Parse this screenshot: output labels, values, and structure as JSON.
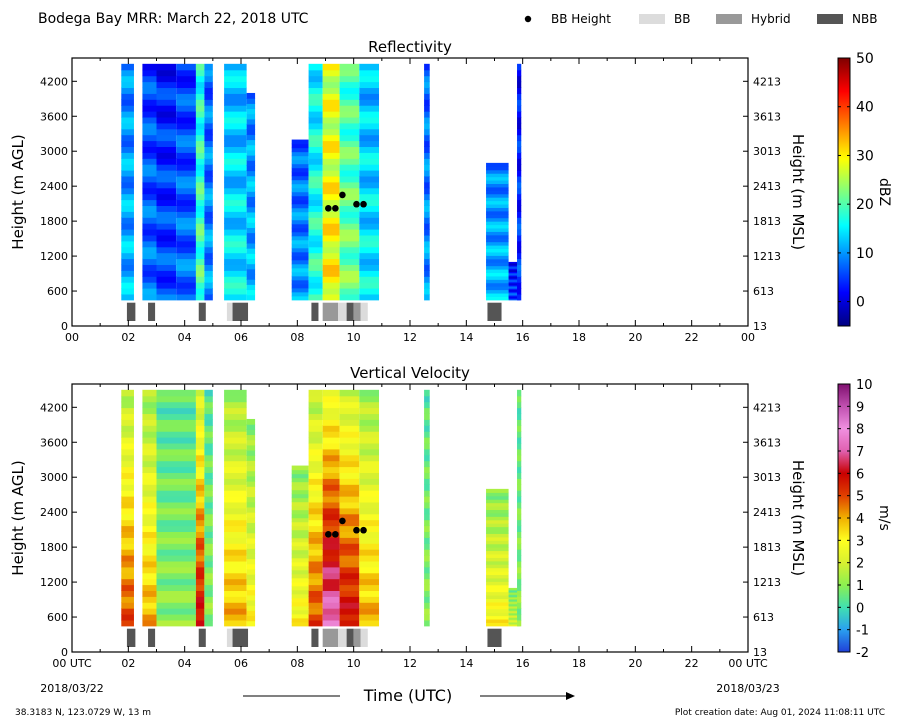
{
  "header": {
    "title": "Bodega Bay MRR:  March 22, 2018 UTC",
    "legend": [
      {
        "label": "BB Height",
        "kind": "dot",
        "color": "#000000"
      },
      {
        "label": "BB",
        "kind": "box",
        "color": "#dcdcdc"
      },
      {
        "label": "Hybrid",
        "kind": "box",
        "color": "#999999"
      },
      {
        "label": "NBB",
        "kind": "box",
        "color": "#555555"
      }
    ]
  },
  "footer": {
    "location": "38.3183 N, 123.0729 W, 13 m",
    "creation_date": "Plot creation date: Aug 01, 2024 11:08:11 UTC"
  },
  "chart_data": [
    {
      "type": "heatmap",
      "title": "Reflectivity",
      "ylabel": "Height (m AGL)",
      "ylabel_right": "Height (m MSL)",
      "xlim": [
        0,
        24
      ],
      "ylim": [
        0,
        4600
      ],
      "yticks": [
        0,
        600,
        1200,
        1800,
        2400,
        3000,
        3600,
        4200
      ],
      "yticks_right": [
        "13",
        "613",
        "1213",
        "1813",
        "2413",
        "3013",
        "3613",
        "4213"
      ],
      "xticks": [
        "00",
        "02",
        "04",
        "06",
        "08",
        "10",
        "12",
        "14",
        "16",
        "18",
        "20",
        "22",
        "00"
      ],
      "colorbar": {
        "label": "dBZ",
        "range": [
          -5,
          50
        ],
        "ticks": [
          0,
          10,
          20,
          30,
          40,
          50
        ],
        "colormap": "jet"
      },
      "bb_height_points": [
        {
          "time": 9.1,
          "height": 2020
        },
        {
          "time": 9.35,
          "height": 2020
        },
        {
          "time": 9.6,
          "height": 2250
        },
        {
          "time": 10.1,
          "height": 2090
        },
        {
          "time": 10.35,
          "height": 2090
        }
      ],
      "bb_class_segments": [
        {
          "start": 1.95,
          "end": 2.25,
          "class": "NBB"
        },
        {
          "start": 2.7,
          "end": 2.95,
          "class": "NBB"
        },
        {
          "start": 4.5,
          "end": 4.75,
          "class": "NBB"
        },
        {
          "start": 5.5,
          "end": 5.7,
          "class": "BB"
        },
        {
          "start": 5.7,
          "end": 6.25,
          "class": "NBB"
        },
        {
          "start": 8.5,
          "end": 8.75,
          "class": "NBB"
        },
        {
          "start": 8.9,
          "end": 9.45,
          "class": "Hybrid"
        },
        {
          "start": 9.45,
          "end": 9.75,
          "class": "BB"
        },
        {
          "start": 9.75,
          "end": 10.0,
          "class": "NBB"
        },
        {
          "start": 10.0,
          "end": 10.25,
          "class": "Hybrid"
        },
        {
          "start": 10.25,
          "end": 10.5,
          "class": "BB"
        },
        {
          "start": 14.75,
          "end": 15.25,
          "class": "NBB"
        }
      ],
      "precip_segments": [
        {
          "start": 1.75,
          "end": 2.2,
          "top": 4500,
          "value": 12
        },
        {
          "start": 2.5,
          "end": 3.0,
          "top": 4500,
          "value": 8
        },
        {
          "start": 3.0,
          "end": 3.7,
          "top": 4500,
          "value": 6
        },
        {
          "start": 3.7,
          "end": 4.4,
          "top": 4500,
          "value": 8
        },
        {
          "start": 4.4,
          "end": 4.7,
          "top": 4500,
          "value": 20
        },
        {
          "start": 4.7,
          "end": 5.0,
          "top": 4500,
          "value": 10
        },
        {
          "start": 5.4,
          "end": 6.2,
          "top": 4500,
          "value": 15
        },
        {
          "start": 6.2,
          "end": 6.5,
          "top": 4000,
          "value": 12
        },
        {
          "start": 7.8,
          "end": 8.4,
          "top": 3200,
          "value": 10
        },
        {
          "start": 8.4,
          "end": 8.9,
          "top": 4500,
          "value": 18
        },
        {
          "start": 8.9,
          "end": 9.5,
          "top": 4500,
          "value": 30
        },
        {
          "start": 9.5,
          "end": 10.2,
          "top": 4500,
          "value": 22
        },
        {
          "start": 10.2,
          "end": 10.9,
          "top": 4500,
          "value": 15
        },
        {
          "start": 12.5,
          "end": 12.7,
          "top": 4500,
          "value": 10
        },
        {
          "start": 14.7,
          "end": 15.5,
          "top": 2800,
          "value": 12
        },
        {
          "start": 15.5,
          "end": 15.9,
          "top": 1100,
          "value": 5
        },
        {
          "start": 15.8,
          "end": 15.95,
          "top": 4500,
          "value": 5
        }
      ]
    },
    {
      "type": "heatmap",
      "title": "Vertical Velocity",
      "ylabel": "Height (m AGL)",
      "ylabel_right": "Height (m MSL)",
      "xlabel": "Time (UTC)",
      "xlim": [
        0,
        24
      ],
      "ylim": [
        0,
        4600
      ],
      "yticks": [
        0,
        600,
        1200,
        1800,
        2400,
        3000,
        3600,
        4200
      ],
      "yticks_right": [
        "13",
        "613",
        "1213",
        "1813",
        "2413",
        "3013",
        "3613",
        "4213"
      ],
      "xticks": [
        "00 UTC",
        "02",
        "04",
        "06",
        "08",
        "10",
        "12",
        "14",
        "16",
        "18",
        "20",
        "22",
        "00 UTC"
      ],
      "xdate_start": "2018/03/22",
      "xdate_end": "2018/03/23",
      "colorbar": {
        "label": "m/s",
        "range": [
          -2,
          10
        ],
        "ticks": [
          -2,
          -1,
          0,
          1,
          2,
          3,
          4,
          5,
          6,
          7,
          8,
          9,
          10
        ]
      },
      "bb_height_points": [
        {
          "time": 9.1,
          "height": 2020
        },
        {
          "time": 9.35,
          "height": 2020
        },
        {
          "time": 9.6,
          "height": 2250
        },
        {
          "time": 10.1,
          "height": 2090
        },
        {
          "time": 10.35,
          "height": 2090
        }
      ],
      "bb_class_segments": [
        {
          "start": 1.95,
          "end": 2.25,
          "class": "NBB"
        },
        {
          "start": 2.7,
          "end": 2.95,
          "class": "NBB"
        },
        {
          "start": 4.5,
          "end": 4.75,
          "class": "NBB"
        },
        {
          "start": 5.5,
          "end": 5.7,
          "class": "BB"
        },
        {
          "start": 5.7,
          "end": 6.25,
          "class": "NBB"
        },
        {
          "start": 8.5,
          "end": 8.75,
          "class": "NBB"
        },
        {
          "start": 8.9,
          "end": 9.45,
          "class": "Hybrid"
        },
        {
          "start": 9.45,
          "end": 9.75,
          "class": "BB"
        },
        {
          "start": 9.75,
          "end": 10.0,
          "class": "NBB"
        },
        {
          "start": 10.0,
          "end": 10.25,
          "class": "Hybrid"
        },
        {
          "start": 10.25,
          "end": 10.5,
          "class": "BB"
        },
        {
          "start": 14.75,
          "end": 15.25,
          "class": "NBB"
        }
      ],
      "precip_segments": [
        {
          "start": 1.75,
          "end": 2.2,
          "top": 4500,
          "value": 5
        },
        {
          "start": 2.5,
          "end": 3.0,
          "top": 4500,
          "value": 4
        },
        {
          "start": 3.0,
          "end": 4.4,
          "top": 4500,
          "value": 1
        },
        {
          "start": 4.4,
          "end": 4.7,
          "top": 4500,
          "value": 6
        },
        {
          "start": 4.7,
          "end": 5.0,
          "top": 4500,
          "value": 1
        },
        {
          "start": 5.4,
          "end": 6.2,
          "top": 4500,
          "value": 4
        },
        {
          "start": 6.2,
          "end": 6.5,
          "top": 4000,
          "value": 3
        },
        {
          "start": 7.8,
          "end": 8.4,
          "top": 3200,
          "value": 3
        },
        {
          "start": 8.4,
          "end": 8.9,
          "top": 4500,
          "value": 5
        },
        {
          "start": 8.9,
          "end": 9.5,
          "top": 4500,
          "value": 7.5
        },
        {
          "start": 9.5,
          "end": 10.2,
          "top": 4500,
          "value": 6
        },
        {
          "start": 10.2,
          "end": 10.9,
          "top": 4500,
          "value": 4
        },
        {
          "start": 12.5,
          "end": 12.7,
          "top": 4500,
          "value": 1
        },
        {
          "start": 14.7,
          "end": 15.5,
          "top": 2800,
          "value": 3
        },
        {
          "start": 15.5,
          "end": 15.9,
          "top": 1100,
          "value": 2
        },
        {
          "start": 15.8,
          "end": 15.95,
          "top": 4500,
          "value": 1
        }
      ]
    }
  ]
}
